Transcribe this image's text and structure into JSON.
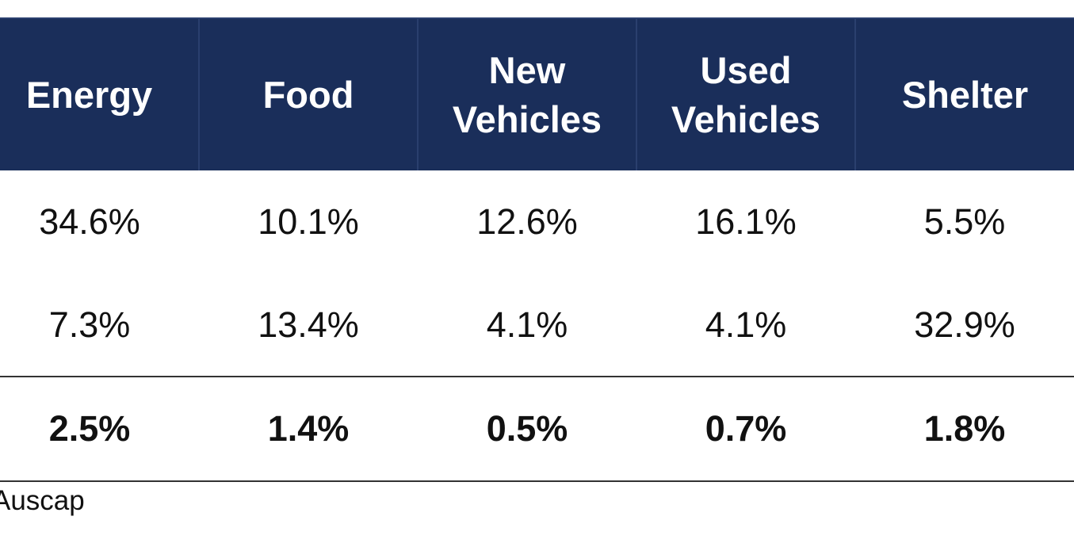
{
  "table": {
    "headers": [
      {
        "label": "Energy"
      },
      {
        "label": "Food"
      },
      {
        "label": "New Vehicles"
      },
      {
        "label": "Used Vehicles"
      },
      {
        "label": "Shelter"
      }
    ],
    "rows": [
      {
        "cells": [
          "34.6%",
          "10.1%",
          "12.6%",
          "16.1%",
          "5.5%"
        ]
      },
      {
        "cells": [
          "7.3%",
          "13.4%",
          "4.1%",
          "4.1%",
          "32.9%"
        ]
      },
      {
        "cells": [
          "2.5%",
          "1.4%",
          "0.5%",
          "0.7%",
          "1.8%"
        ]
      }
    ]
  },
  "source": {
    "text": "Auscap"
  },
  "colors": {
    "header_background": "#1a2e5a",
    "header_text": "#ffffff",
    "body_text": "#111111"
  }
}
